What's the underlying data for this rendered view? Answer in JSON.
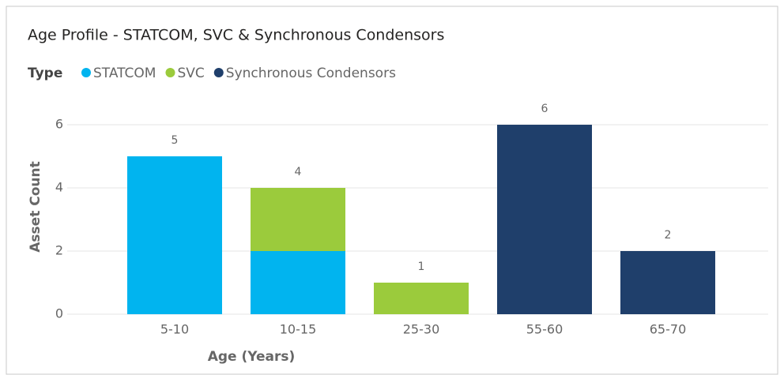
{
  "chart_data": {
    "type": "stacked_bar",
    "title": "Age Profile - STATCOM, SVC & Synchronous Condensors",
    "legend_title": "Type",
    "x_label": "Age (Years)",
    "y_label": "Asset Count",
    "categories": [
      "5-10",
      "10-15",
      "25-30",
      "55-60",
      "65-70"
    ],
    "series": [
      {
        "name": "STATCOM",
        "color": "#01b4ef",
        "values": [
          5,
          2,
          0,
          0,
          0
        ]
      },
      {
        "name": "SVC",
        "color": "#9bcb3c",
        "values": [
          0,
          2,
          1,
          0,
          0
        ]
      },
      {
        "name": "Synchronous Condensors",
        "color": "#1f3f6b",
        "values": [
          0,
          0,
          0,
          6,
          2
        ]
      }
    ],
    "totals": [
      5,
      4,
      1,
      6,
      2
    ],
    "ylim": [
      0,
      6
    ],
    "yticks": [
      0,
      2,
      4,
      6
    ],
    "grid": true
  }
}
